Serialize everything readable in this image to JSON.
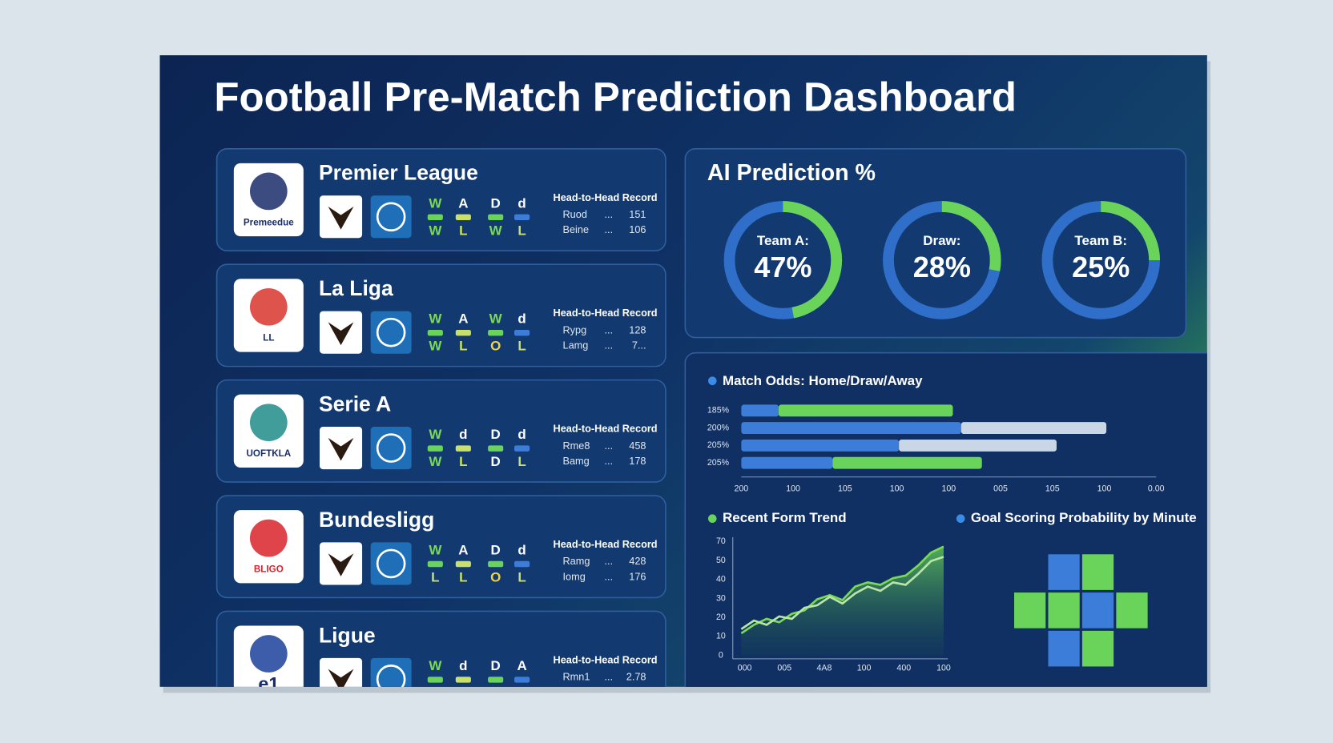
{
  "title": "Football Pre-Match Prediction Dashboard",
  "leagues": [
    {
      "name": "Premier League",
      "logo_text": "Premeedue",
      "form_top": [
        "W",
        "A",
        "D",
        "d"
      ],
      "form_bottom": [
        "W",
        "L",
        "W",
        "L"
      ],
      "h2h_title": "Head-to-Head Record",
      "h2h": [
        {
          "label": "Ruod",
          "dots": "...",
          "value": "151"
        },
        {
          "label": "Beine",
          "dots": "...",
          "value": "106"
        }
      ]
    },
    {
      "name": "La Liga",
      "logo_text": "LL",
      "form_top": [
        "W",
        "A",
        "W",
        "d"
      ],
      "form_bottom": [
        "W",
        "L",
        "O",
        "L"
      ],
      "h2h_title": "Head-to-Head Record",
      "h2h": [
        {
          "label": "Rypg",
          "dots": "...",
          "value": "128"
        },
        {
          "label": "Lamg",
          "dots": "...",
          "value": "7..."
        }
      ]
    },
    {
      "name": "Serie A",
      "logo_text": "UOFTKLA",
      "form_top": [
        "W",
        "d",
        "D",
        "d"
      ],
      "form_bottom": [
        "W",
        "L",
        "D",
        "L"
      ],
      "h2h_title": "Head-to-Head Record",
      "h2h": [
        {
          "label": "Rme8",
          "dots": "...",
          "value": "458"
        },
        {
          "label": "Bamg",
          "dots": "...",
          "value": "178"
        }
      ]
    },
    {
      "name": "Bundesligg",
      "logo_text": "BLIGO",
      "form_top": [
        "W",
        "A",
        "D",
        "d"
      ],
      "form_bottom": [
        "L",
        "L",
        "O",
        "L"
      ],
      "h2h_title": "Head-to-Head Record",
      "h2h": [
        {
          "label": "Ramg",
          "dots": "...",
          "value": "428"
        },
        {
          "label": "Iomg",
          "dots": "...",
          "value": "176"
        }
      ]
    },
    {
      "name": "Ligue",
      "logo_text": "e1",
      "form_top": [
        "W",
        "d",
        "D",
        "A"
      ],
      "form_bottom": [],
      "h2h_title": "Head-to-Head Record",
      "h2h": [
        {
          "label": "Rmn1",
          "dots": "...",
          "value": "2.78"
        }
      ]
    }
  ],
  "prediction": {
    "title": "AI Prediction %",
    "outcomes": [
      {
        "label": "Team A:",
        "value": 47,
        "value_label": "47%"
      },
      {
        "label": "Draw:",
        "value": 28,
        "value_label": "28%"
      },
      {
        "label": "Team B:",
        "value": 25,
        "value_label": "25%"
      }
    ],
    "ring_color": "#2f6fc9",
    "arc_color": "#6ad35a"
  },
  "odds": {
    "title": "Match Odds: Home/Draw/Away",
    "row_labels": [
      "185%",
      "200%",
      "205%",
      "205%"
    ],
    "segments": [
      [
        9,
        42
      ],
      [
        53,
        35
      ],
      [
        38,
        38
      ],
      [
        22,
        36
      ]
    ],
    "segment_colors": [
      [
        "#3b7dd8",
        "#6ad35a"
      ],
      [
        "#3b7dd8",
        "#c9d6e6"
      ],
      [
        "#3b7dd8",
        "#c9d6e6"
      ],
      [
        "#3b7dd8",
        "#6ad35a"
      ]
    ],
    "xlim": [
      0,
      100
    ],
    "tick_labels": [
      "200",
      "100",
      "105",
      "100",
      "100",
      "005",
      "105",
      "100",
      "0.00"
    ]
  },
  "form_trend": {
    "title": "Recent Form Trend",
    "ylim": [
      0,
      70
    ],
    "ytick_labels": [
      "70",
      "50",
      "40",
      "30",
      "20",
      "10",
      "0"
    ],
    "xtick_labels": [
      "000",
      "005",
      "4A8",
      "100",
      "400",
      "100"
    ],
    "series": [
      {
        "color": "#7ad957",
        "values": [
          13.6,
          18.8,
          22.5,
          20.4,
          25.6,
          27.7,
          34.5,
          37.1,
          34,
          42.3,
          44.9,
          43.4,
          47.5,
          49.1,
          55.4,
          63.2,
          66.9
        ]
      },
      {
        "color": "#b8e6a6",
        "values": [
          16.2,
          21.4,
          18.8,
          24,
          22.5,
          29.3,
          30.8,
          36,
          31.9,
          38.1,
          42.3,
          39.7,
          44.9,
          43.4,
          50.2,
          58,
          60.6
        ]
      }
    ]
  },
  "goal_probability": {
    "title": "Goal Scoring Probability by Minute"
  }
}
